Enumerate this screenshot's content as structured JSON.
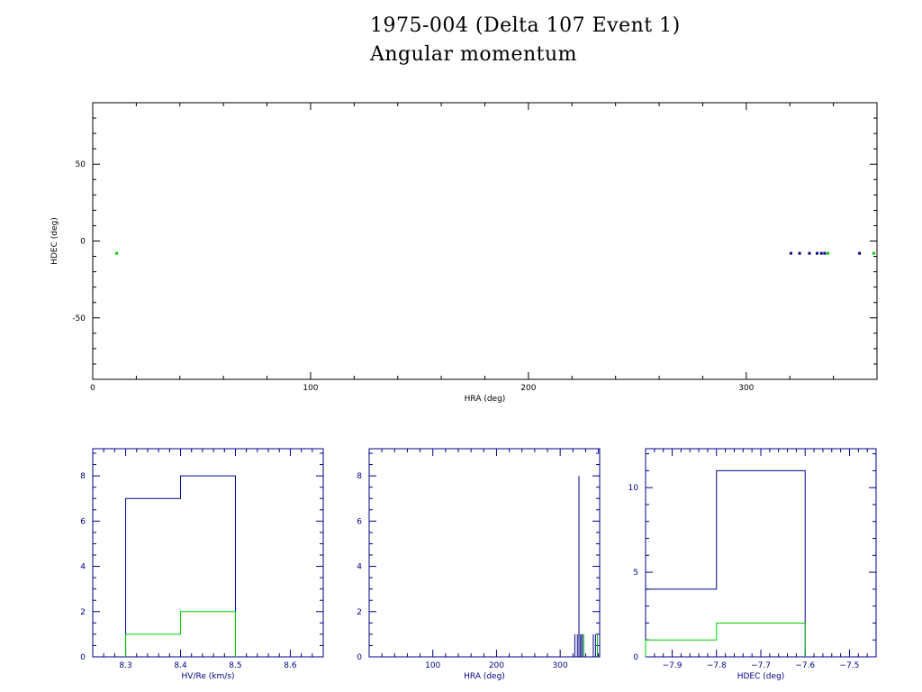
{
  "titles": {
    "line1": "1975-004 (Delta 107 Event 1)",
    "line2": "Angular momentum"
  },
  "colors": {
    "axis_main": "#000000",
    "axis_small": "#00008b",
    "series_blue": "#00008b",
    "series_green": "#00cc00"
  },
  "chart_data": [
    {
      "type": "scatter",
      "xlabel": "HRA (deg)",
      "ylabel": "HDEC (deg)",
      "xlim": [
        0,
        360
      ],
      "ylim": [
        -90,
        90
      ],
      "xticks": [
        0,
        100,
        200,
        300
      ],
      "yticks": [
        -50,
        0,
        50
      ],
      "series": [
        {
          "color": "blue",
          "points": [
            [
              320.5,
              -8
            ],
            [
              324.5,
              -8
            ],
            [
              329,
              -8
            ],
            [
              332.5,
              -8
            ],
            [
              334.5,
              -8
            ],
            [
              336,
              -8
            ],
            [
              352,
              -8
            ]
          ]
        },
        {
          "color": "green",
          "points": [
            [
              11,
              -8
            ],
            [
              337.5,
              -8
            ],
            [
              358.5,
              -8
            ]
          ]
        }
      ]
    },
    {
      "type": "histogram",
      "xlabel": "HV/Re (km/s)",
      "ylabel": "",
      "xlim": [
        8.24,
        8.66
      ],
      "ylim": [
        0,
        9.2
      ],
      "xticks": [
        8.3,
        8.4,
        8.5,
        8.6
      ],
      "yticks": [
        0,
        2,
        4,
        6,
        8
      ],
      "series": [
        {
          "color": "blue",
          "bins": [
            [
              8.3,
              8.4,
              7
            ],
            [
              8.4,
              8.5,
              8
            ]
          ]
        },
        {
          "color": "green",
          "bins": [
            [
              8.3,
              8.4,
              1
            ],
            [
              8.4,
              8.5,
              2
            ]
          ]
        }
      ]
    },
    {
      "type": "histogram",
      "xlabel": "HRA (deg)",
      "ylabel": "",
      "xlim": [
        0,
        362
      ],
      "ylim": [
        0,
        9.2
      ],
      "xticks": [
        100,
        200,
        300
      ],
      "yticks": [
        0,
        2,
        4,
        6,
        8
      ],
      "series": [
        {
          "color": "blue",
          "spikes": [
            [
              323,
              1
            ],
            [
              327,
              1
            ],
            [
              329.5,
              8
            ],
            [
              332,
              1
            ],
            [
              334,
              1
            ],
            [
              336.5,
              1
            ],
            [
              352,
              1
            ],
            [
              355.5,
              1
            ]
          ]
        },
        {
          "color": "green",
          "spikes": [
            [
              337,
              1
            ],
            [
              358.5,
              1
            ]
          ]
        }
      ]
    },
    {
      "type": "histogram",
      "xlabel": "HDEC (deg)",
      "ylabel": "",
      "xlim": [
        -7.96,
        -7.44
      ],
      "ylim": [
        0,
        12.3
      ],
      "xticks": [
        -7.9,
        -7.8,
        -7.7,
        -7.6,
        -7.5
      ],
      "tick_labels": [
        "−7.9",
        "−7.8",
        "−7.7",
        "−7.6",
        "−7.5"
      ],
      "yticks": [
        0,
        5,
        10
      ],
      "series": [
        {
          "color": "blue",
          "bins": [
            [
              -7.96,
              -7.8,
              4
            ],
            [
              -7.8,
              -7.6,
              11
            ]
          ]
        },
        {
          "color": "green",
          "bins": [
            [
              -7.96,
              -7.8,
              1
            ],
            [
              -7.8,
              -7.6,
              2
            ]
          ]
        }
      ]
    }
  ]
}
